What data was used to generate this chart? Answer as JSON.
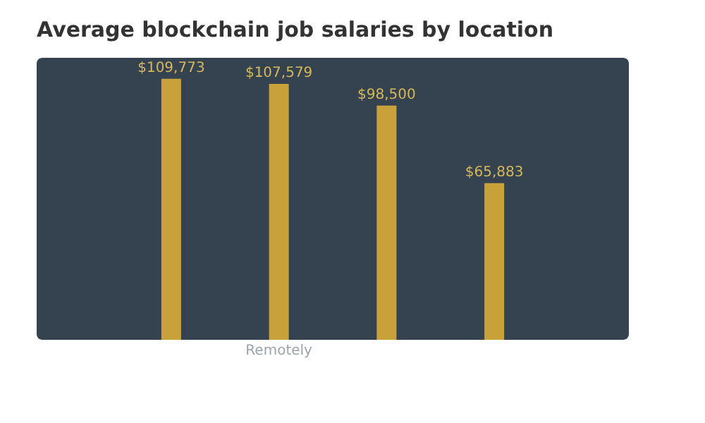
{
  "chart_data": {
    "type": "bar",
    "title": "Average blockchain job salaries by location",
    "categories": [
      null,
      "Remotely",
      null,
      null
    ],
    "values": [
      109773,
      107579,
      98500,
      65883
    ],
    "value_labels": [
      "$109,773",
      "$107,579",
      "$98,500",
      "$65,883"
    ],
    "color": "#c9a13b",
    "grid": false
  }
}
